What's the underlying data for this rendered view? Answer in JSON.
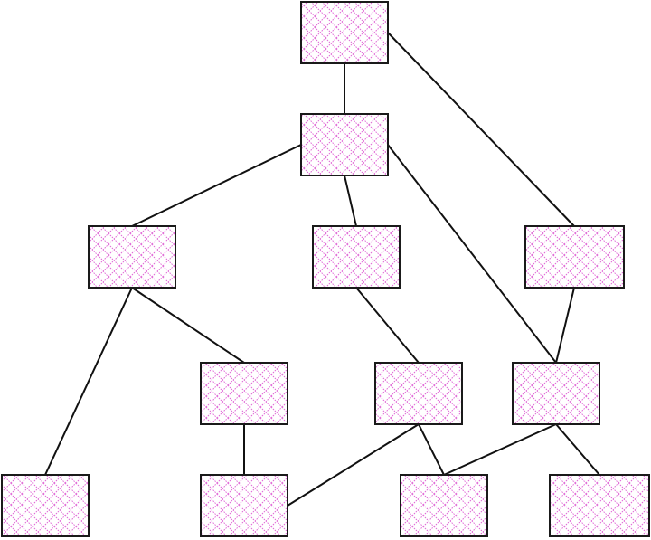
{
  "diagram": {
    "type": "graph",
    "node_fill_pattern": "diamond-crosshatch",
    "colors": {
      "background": "#ffffff",
      "node_fill": "#ffffff",
      "node_pattern": "#e066d6",
      "node_border": "#1a1a1a",
      "edge": "#111111"
    },
    "nodes": [
      {
        "id": "n1",
        "label": ""
      },
      {
        "id": "n2",
        "label": ""
      },
      {
        "id": "n3",
        "label": ""
      },
      {
        "id": "n4",
        "label": ""
      },
      {
        "id": "n5",
        "label": ""
      },
      {
        "id": "n6",
        "label": ""
      },
      {
        "id": "n7",
        "label": ""
      },
      {
        "id": "n8",
        "label": ""
      },
      {
        "id": "n9",
        "label": ""
      },
      {
        "id": "n10",
        "label": ""
      },
      {
        "id": "n11",
        "label": ""
      },
      {
        "id": "n12",
        "label": ""
      }
    ],
    "edges": [
      {
        "from": "n1",
        "to": "n2"
      },
      {
        "from": "n1",
        "to": "n5"
      },
      {
        "from": "n2",
        "to": "n3"
      },
      {
        "from": "n2",
        "to": "n4"
      },
      {
        "from": "n2",
        "to": "n8"
      },
      {
        "from": "n3",
        "to": "n9"
      },
      {
        "from": "n3",
        "to": "n6"
      },
      {
        "from": "n4",
        "to": "n7"
      },
      {
        "from": "n5",
        "to": "n8"
      },
      {
        "from": "n6",
        "to": "n10"
      },
      {
        "from": "n7",
        "to": "n10"
      },
      {
        "from": "n7",
        "to": "n11"
      },
      {
        "from": "n8",
        "to": "n11"
      },
      {
        "from": "n8",
        "to": "n12"
      }
    ]
  }
}
